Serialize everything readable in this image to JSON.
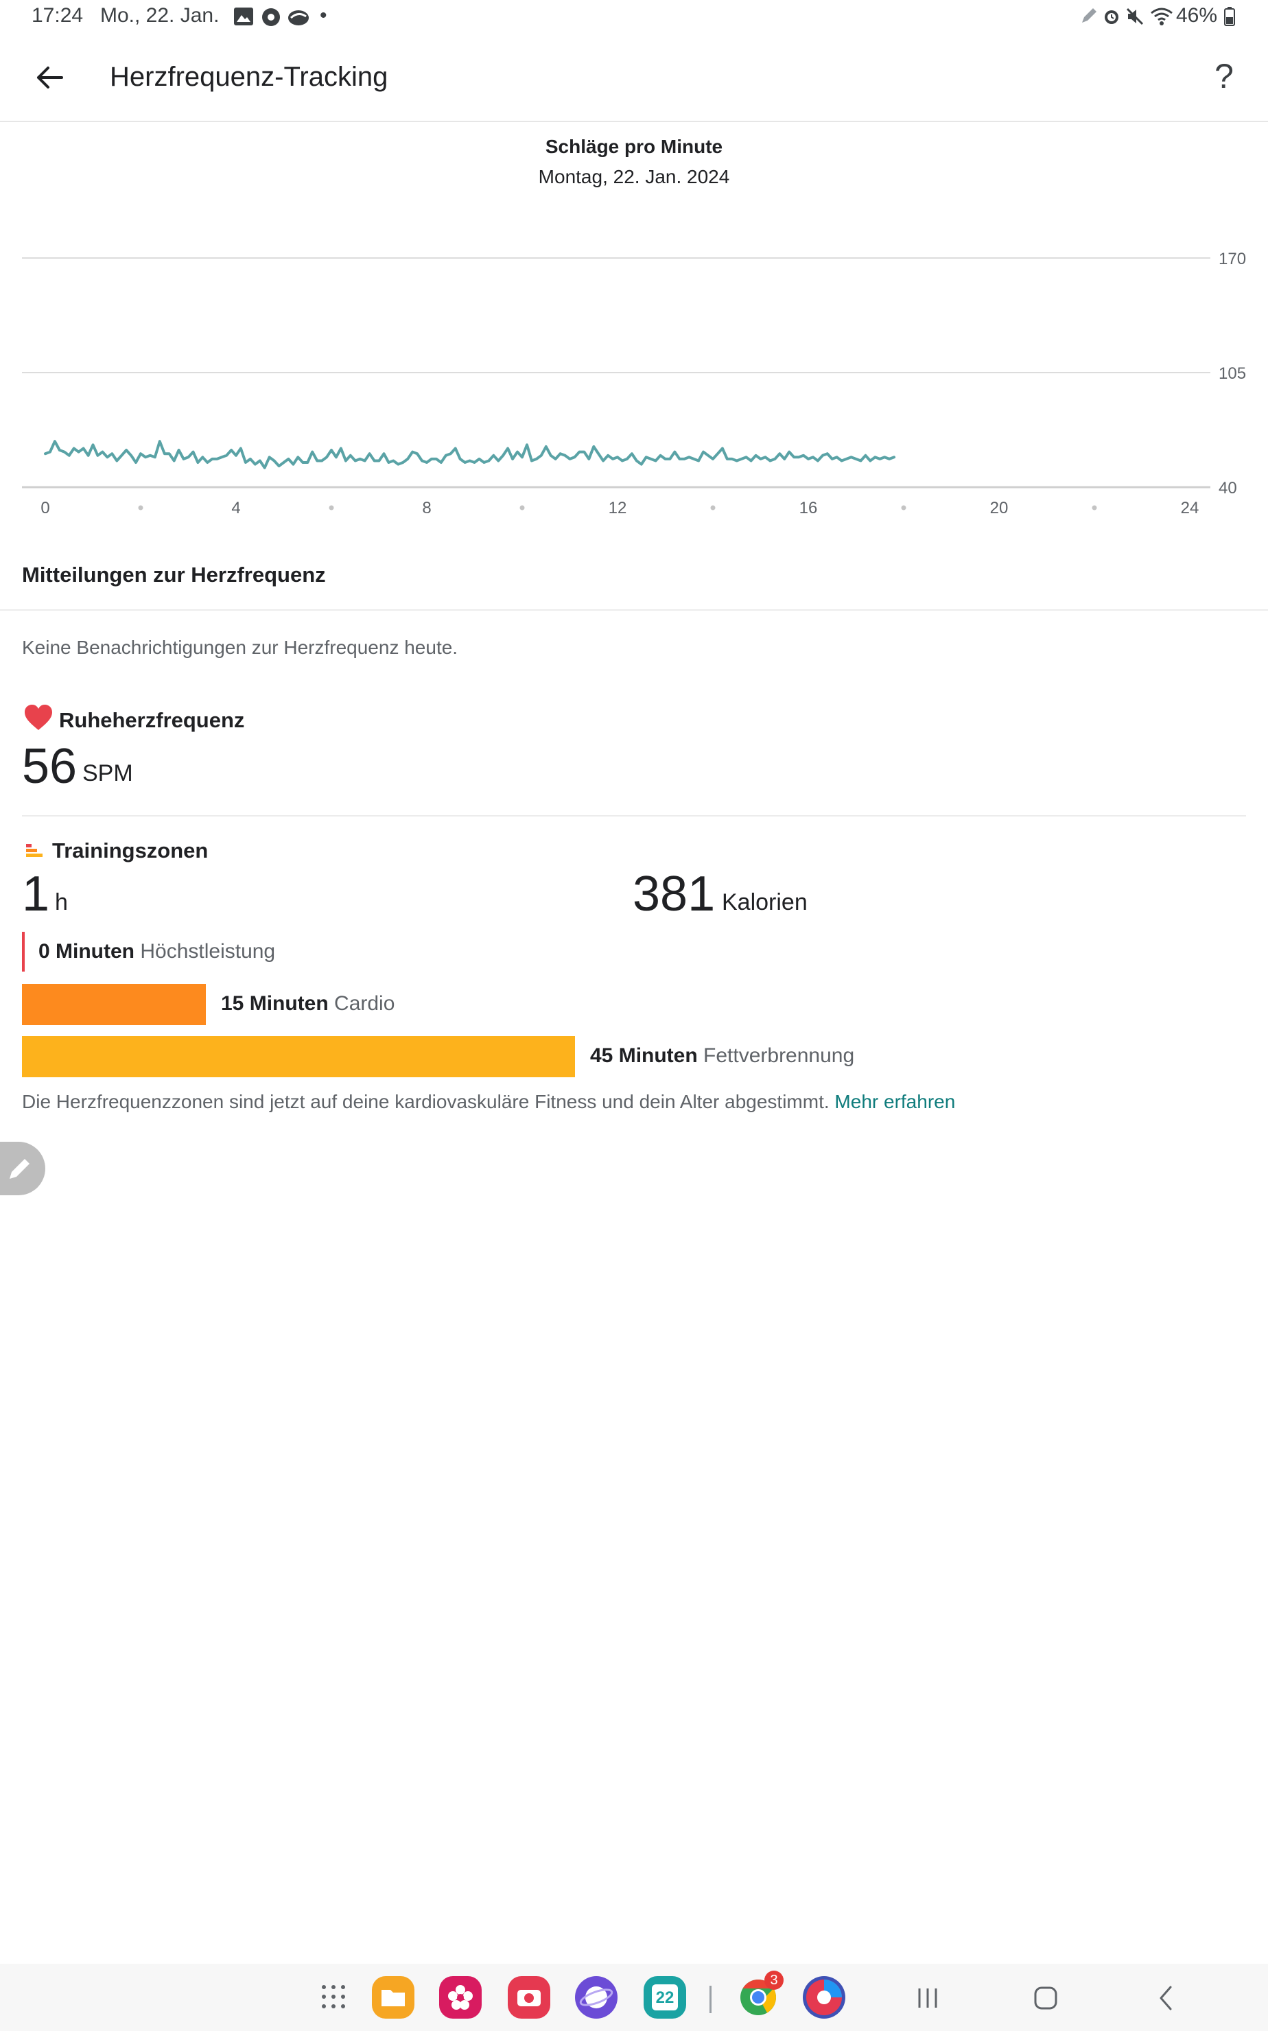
{
  "status_bar": {
    "time": "17:24",
    "date": "Mo., 22. Jan.",
    "battery": "46%"
  },
  "header": {
    "title": "Herzfrequenz-Tracking",
    "back_icon": "arrow-left-icon",
    "help_label": "?"
  },
  "chart_data": {
    "type": "line",
    "title": "Schläge pro Minute",
    "subtitle": "Montag, 22. Jan. 2024",
    "x_ticks": [
      0,
      4,
      8,
      12,
      16,
      20,
      24
    ],
    "xlim": [
      0,
      24
    ],
    "y_ticks": [
      40,
      105,
      170
    ],
    "ylim": [
      40,
      170
    ],
    "grid": true,
    "zone_colors": {
      "normal": "#5aa3a6",
      "fat_burn": "#f9c31b",
      "cardio": "#f58b3b"
    },
    "x": [
      0,
      0.1,
      0.2,
      0.3,
      0.4,
      0.5,
      0.6,
      0.7,
      0.8,
      0.9,
      1.0,
      1.1,
      1.2,
      1.3,
      1.4,
      1.5,
      1.6,
      1.7,
      1.8,
      1.9,
      2.0,
      2.1,
      2.2,
      2.3,
      2.4,
      2.5,
      2.6,
      2.7,
      2.8,
      2.9,
      3.0,
      3.1,
      3.2,
      3.3,
      3.4,
      3.5,
      3.6,
      3.7,
      3.8,
      3.9,
      4.0,
      4.1,
      4.2,
      4.3,
      4.4,
      4.5,
      4.6,
      4.7,
      4.8,
      4.9,
      5.0,
      5.1,
      5.2,
      5.3,
      5.4,
      5.5,
      5.6,
      5.7,
      5.8,
      5.9,
      6.0,
      6.1,
      6.2,
      6.3,
      6.4,
      6.5,
      6.6,
      6.7,
      6.8,
      6.9,
      7.0,
      7.1,
      7.2,
      7.3,
      7.4,
      7.5,
      7.6,
      7.7,
      7.8,
      7.9,
      8.0,
      8.1,
      8.2,
      8.3,
      8.4,
      8.5,
      8.6,
      8.7,
      8.8,
      8.9,
      9.0,
      9.1,
      9.2,
      9.3,
      9.4,
      9.5,
      9.6,
      9.7,
      9.8,
      9.9,
      10.0,
      10.1,
      10.2,
      10.3,
      10.4,
      10.5,
      10.6,
      10.7,
      10.8,
      10.9,
      11.0,
      11.1,
      11.2,
      11.3,
      11.4,
      11.5,
      11.6,
      11.7,
      11.8,
      11.9,
      12.0,
      12.1,
      12.2,
      12.3,
      12.4,
      12.5,
      12.6,
      12.7,
      12.8,
      12.9,
      13.0,
      13.1,
      13.2,
      13.3,
      13.4,
      13.5,
      13.6,
      13.7,
      13.8,
      13.9,
      14.0,
      14.1,
      14.2,
      14.3,
      14.4,
      14.5,
      14.6,
      14.7,
      14.8,
      14.9,
      15.0,
      15.1,
      15.2,
      15.3,
      15.4,
      15.5,
      15.6,
      15.7,
      15.8,
      15.9,
      16.0,
      16.1,
      16.2,
      16.3,
      16.4,
      16.5,
      16.6,
      16.7,
      16.8,
      16.9,
      17.0,
      17.1,
      17.2,
      17.3,
      17.4,
      17.5,
      17.6,
      17.7,
      17.8
    ],
    "y": [
      59,
      60,
      66,
      61,
      60,
      58,
      62,
      60,
      62,
      58,
      64,
      58,
      60,
      57,
      59,
      55,
      58,
      61,
      58,
      54,
      59,
      57,
      58,
      57,
      66,
      59,
      59,
      55,
      61,
      56,
      57,
      60,
      54,
      57,
      54,
      56,
      56,
      57,
      58,
      61,
      58,
      62,
      54,
      56,
      53,
      55,
      51,
      57,
      55,
      52,
      54,
      56,
      53,
      57,
      54,
      54,
      60,
      55,
      55,
      57,
      61,
      57,
      62,
      55,
      58,
      55,
      56,
      55,
      59,
      55,
      55,
      59,
      54,
      55,
      53,
      54,
      56,
      60,
      59,
      55,
      54,
      56,
      56,
      54,
      58,
      59,
      62,
      56,
      54,
      55,
      54,
      56,
      54,
      55,
      58,
      55,
      58,
      62,
      56,
      60,
      57,
      64,
      55,
      56,
      58,
      63,
      58,
      56,
      59,
      58,
      56,
      57,
      60,
      60,
      56,
      63,
      59,
      55,
      58,
      56,
      57,
      55,
      56,
      59,
      55,
      53,
      57,
      56,
      55,
      58,
      56,
      56,
      60,
      56,
      56,
      57,
      56,
      55,
      60,
      58,
      56,
      59,
      62,
      56,
      56,
      55,
      56,
      57,
      55,
      58,
      56,
      57,
      55,
      56,
      59,
      56,
      60,
      57,
      57,
      58,
      56,
      57,
      55,
      58,
      59,
      56,
      57,
      55,
      56,
      57,
      56,
      55,
      58,
      55,
      57,
      56,
      57,
      56,
      57
    ]
  },
  "notifications": {
    "heading": "Mitteilungen zur Herzfrequenz",
    "empty_text": "Keine Benachrichtigungen zur Herzfrequenz heute."
  },
  "resting": {
    "label": "Ruheherzfrequenz",
    "value": "56",
    "unit": "SPM",
    "icon": "heart-icon"
  },
  "zones": {
    "label": "Trainingszonen",
    "icon": "zones-icon",
    "duration_value": "1",
    "duration_unit": "h",
    "calories_value": "381",
    "calories_unit": "Kalorien",
    "peak": {
      "minutes": "0 Minuten",
      "name": "Höchstleistung",
      "fraction": 0.0,
      "color": "#e8424c"
    },
    "cardio": {
      "minutes": "15 Minuten",
      "name": "Cardio",
      "fraction": 0.333,
      "color": "#fd8a1e"
    },
    "fatburn": {
      "minutes": "45 Minuten",
      "name": "Fettverbrennung",
      "fraction": 1.0,
      "color": "#fdb21c"
    },
    "note": "Die Herzfrequenzzonen sind jetzt auf deine kardiovaskuläre Fitness und dein Alter abgestimmt.",
    "link": "Mehr erfahren"
  },
  "edit_fab_icon": "pencil-icon",
  "dock": {
    "calendar_day": "22",
    "chrome_badge": "3"
  }
}
